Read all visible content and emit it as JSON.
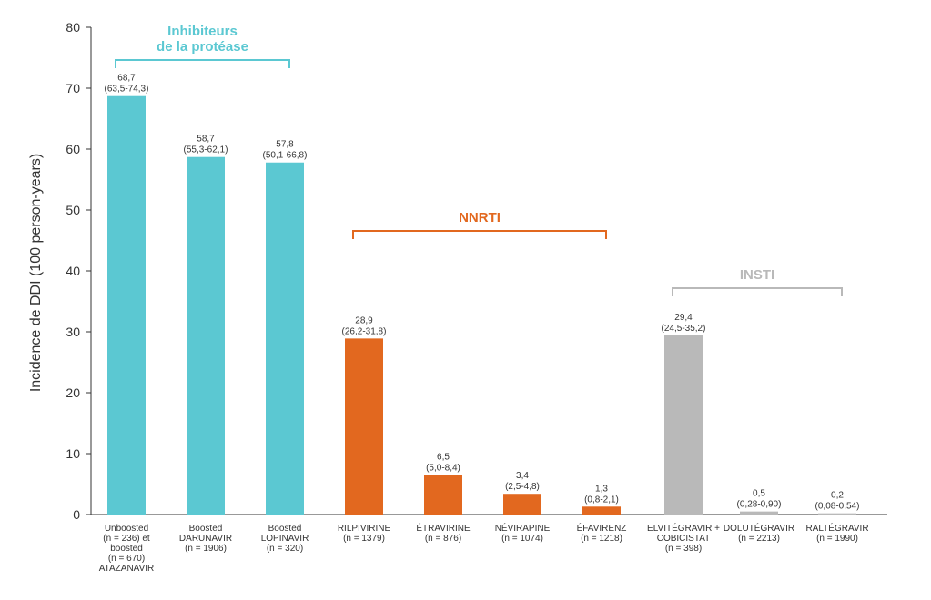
{
  "chart_data": {
    "type": "bar",
    "ylabel": "Incidence de DDI (100 person-years)",
    "ylim": [
      0,
      80
    ],
    "yticks": [
      "0",
      "10",
      "20",
      "30",
      "40",
      "50",
      "60",
      "70",
      "80"
    ],
    "grid": false,
    "colors": {
      "pi": "#5bc8d2",
      "nnrti": "#e2681f",
      "insti": "#b9b9b9",
      "axis": "#333333",
      "text": "#333333"
    },
    "bars": [
      {
        "label": [
          "Unboosted",
          "(n = 236) et",
          "boosted",
          "(n = 670)",
          "ATAZANAVIR"
        ],
        "value": 68.7,
        "value_label": "68,7",
        "ci_label": "(63,5-74,3)",
        "group": "pi"
      },
      {
        "label": [
          "Boosted",
          "DARUNAVIR",
          "(n = 1906)"
        ],
        "value": 58.7,
        "value_label": "58,7",
        "ci_label": "(55,3-62,1)",
        "group": "pi"
      },
      {
        "label": [
          "Boosted",
          "LOPINAVIR",
          "(n = 320)"
        ],
        "value": 57.8,
        "value_label": "57,8",
        "ci_label": "(50,1-66,8)",
        "group": "pi"
      },
      {
        "label": [
          "RILPIVIRINE",
          "(n = 1379)"
        ],
        "value": 28.9,
        "value_label": "28,9",
        "ci_label": "(26,2-31,8)",
        "group": "nnrti"
      },
      {
        "label": [
          "ÉTRAVIRINE",
          "(n = 876)"
        ],
        "value": 6.5,
        "value_label": "6,5",
        "ci_label": "(5,0-8,4)",
        "group": "nnrti"
      },
      {
        "label": [
          "NÉVIRAPINE",
          "(n = 1074)"
        ],
        "value": 3.4,
        "value_label": "3,4",
        "ci_label": "(2,5-4,8)",
        "group": "nnrti"
      },
      {
        "label": [
          "ÉFAVIRENZ",
          "(n = 1218)"
        ],
        "value": 1.3,
        "value_label": "1,3",
        "ci_label": "(0,8-2,1)",
        "group": "nnrti"
      },
      {
        "label": [
          "ELVITÉGRAVIR +",
          "COBICISTAT",
          "(n = 398)"
        ],
        "value": 29.4,
        "value_label": "29,4",
        "ci_label": "(24,5-35,2)",
        "group": "insti"
      },
      {
        "label": [
          "DOLUTÉGRAVIR",
          "(n = 2213)"
        ],
        "value": 0.5,
        "value_label": "0,5",
        "ci_label": "(0,28-0,90)",
        "group": "insti"
      },
      {
        "label": [
          "RALTÉGRAVIR",
          "(n = 1990)"
        ],
        "value": 0.2,
        "value_label": "0,2",
        "ci_label": "(0,08-0,54)",
        "group": "insti"
      }
    ],
    "groups": [
      {
        "key": "pi",
        "name": [
          "Inhibiteurs",
          "de la protéase"
        ],
        "from": 0,
        "to": 2
      },
      {
        "key": "nnrti",
        "name": [
          "NNRTI"
        ],
        "from": 3,
        "to": 6
      },
      {
        "key": "insti",
        "name": [
          "INSTI"
        ],
        "from": 7,
        "to": 9
      }
    ]
  }
}
